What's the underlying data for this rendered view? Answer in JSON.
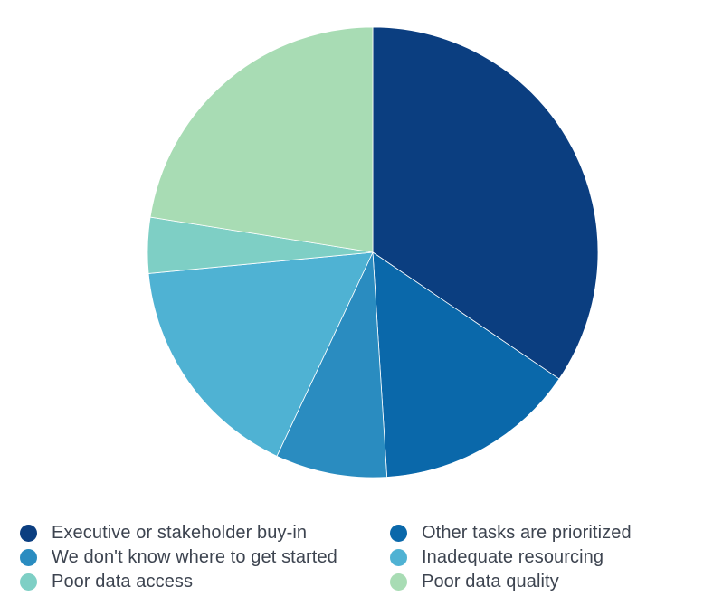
{
  "chart_data": {
    "type": "pie",
    "title": "",
    "start_angle_deg": 0,
    "direction": "clockwise",
    "slices": [
      {
        "label": "Executive or stakeholder buy-in",
        "value": 34.5,
        "color": "#0b3e80"
      },
      {
        "label": "Other tasks are prioritized",
        "value": 14.5,
        "color": "#0a68aa"
      },
      {
        "label": "We don't know where to get started",
        "value": 8.0,
        "color": "#2a8cc0"
      },
      {
        "label": "Inadequate resourcing",
        "value": 16.5,
        "color": "#4fb2d3"
      },
      {
        "label": "Poor data access",
        "value": 4.0,
        "color": "#7ecfc5"
      },
      {
        "label": "Poor data quality",
        "value": 22.5,
        "color": "#a8dcb4"
      }
    ],
    "legend": {
      "placement": "bottom",
      "columns": 2
    }
  }
}
